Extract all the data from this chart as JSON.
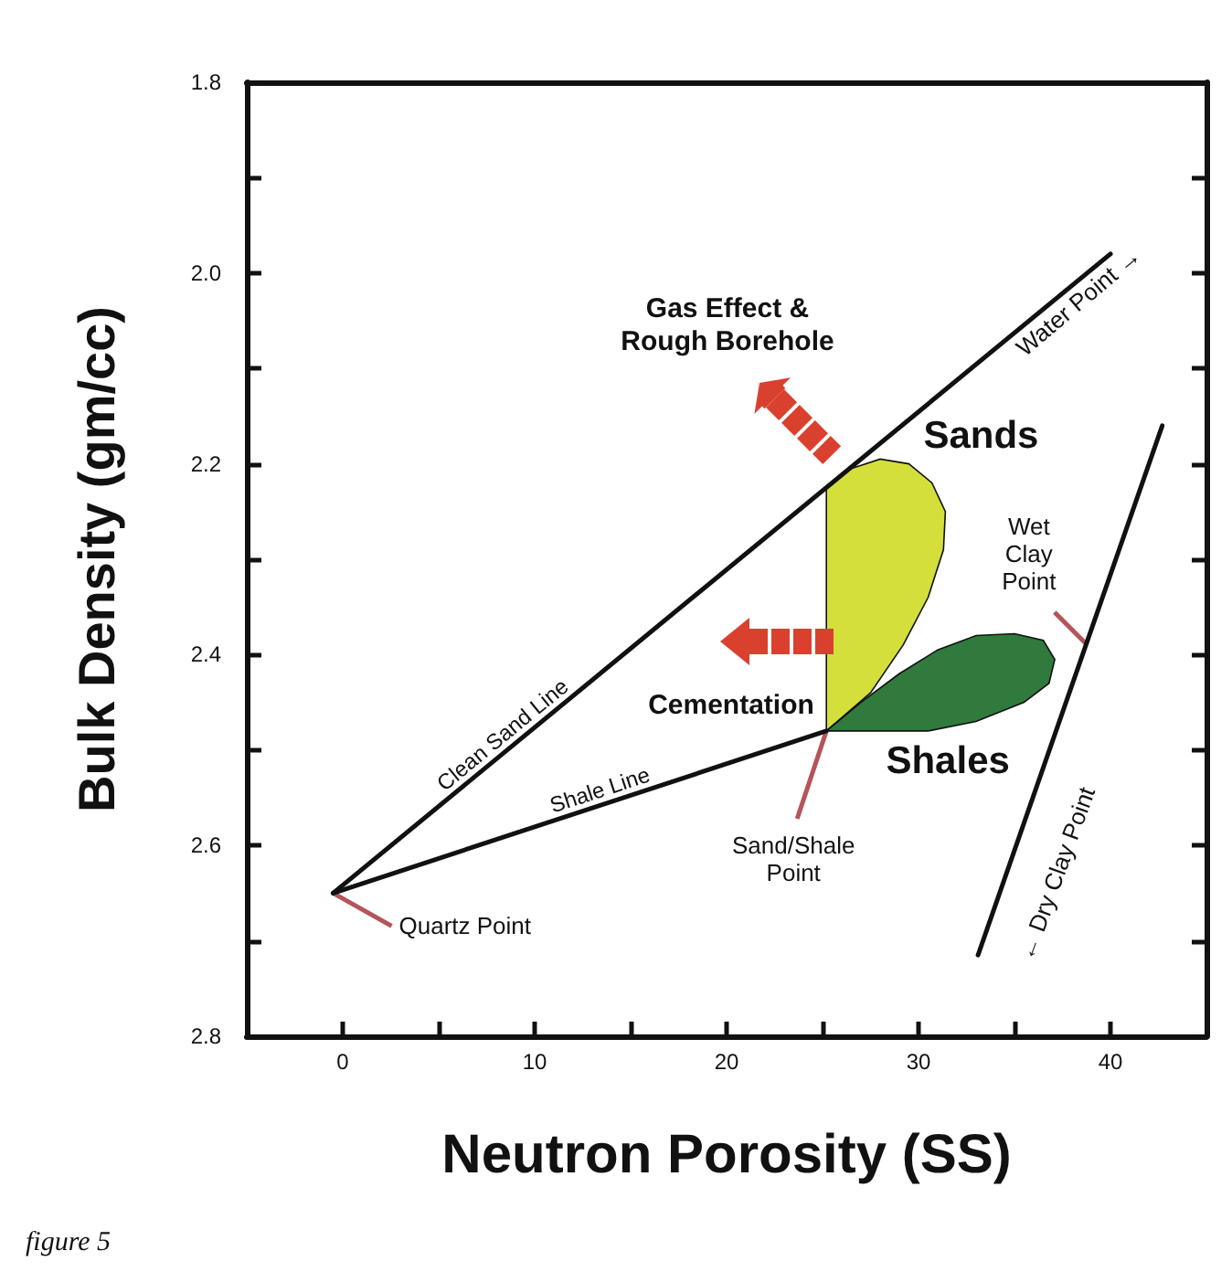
{
  "chart_data": {
    "type": "line",
    "xlabel": "Neutron Porosity (SS)",
    "ylabel": "Bulk Density (gm/cc)",
    "xlim": [
      -5,
      45
    ],
    "xticks": [
      0,
      {
        "value": 5,
        "label": null
      },
      10,
      {
        "value": 15,
        "label": null
      },
      20,
      {
        "value": 25,
        "label": null
      },
      30,
      {
        "value": 35,
        "label": null
      },
      40
    ],
    "ylim": [
      2.8,
      1.8
    ],
    "yticks": [
      1.8,
      {
        "value": 1.9,
        "label": null
      },
      {
        "value": 2.0,
        "label": "2.0"
      },
      {
        "value": 2.1,
        "label": null
      },
      2.2,
      {
        "value": 2.3,
        "label": null
      },
      2.4,
      {
        "value": 2.5,
        "label": null
      },
      2.6,
      {
        "value": 2.7,
        "label": null
      },
      2.8
    ],
    "series": [
      {
        "name": "Clean Sand Line",
        "type": "line",
        "color": "#111111",
        "x": [
          -0.5,
          40
        ],
        "values": [
          2.65,
          1.98
        ]
      },
      {
        "name": "Shale Line",
        "type": "line",
        "color": "#111111",
        "x": [
          -0.5,
          25.2
        ],
        "values": [
          2.65,
          2.48
        ]
      },
      {
        "type": "line",
        "color": "#111111",
        "x": [
          42.7,
          33.1
        ],
        "values": [
          2.16,
          2.715
        ]
      },
      {
        "name": "Sands",
        "type": "area",
        "color": "#d4df3c",
        "x": [
          25.2,
          26.5,
          28,
          29.5,
          30.7,
          31.4,
          31.3,
          30.5,
          29.2,
          27.5,
          25.2
        ],
        "values": [
          2.225,
          2.205,
          2.195,
          2.2,
          2.22,
          2.25,
          2.29,
          2.34,
          2.39,
          2.44,
          2.48
        ]
      },
      {
        "name": "Shales",
        "type": "area",
        "color": "#2f7a3c",
        "x": [
          25.2,
          27,
          29,
          31,
          33,
          35,
          36.5,
          37.1,
          36.8,
          35.5,
          33,
          30.5,
          25.2
        ],
        "values": [
          2.48,
          2.45,
          2.42,
          2.395,
          2.38,
          2.378,
          2.385,
          2.405,
          2.43,
          2.45,
          2.47,
          2.48,
          2.48
        ]
      }
    ],
    "annotations": [
      {
        "text": "Quartz Point",
        "x": -0.5,
        "y": 2.65
      },
      {
        "text": "Sand/Shale\nPoint",
        "x": 25.2,
        "y": 2.48
      },
      {
        "text": "Wet\nClay\nPoint",
        "x": 38.8,
        "y": 2.39
      },
      "Water Point →",
      "← Dry Clay Point",
      "Gas Effect &\nRough Borehole",
      "Cementation",
      "figure 5"
    ]
  }
}
